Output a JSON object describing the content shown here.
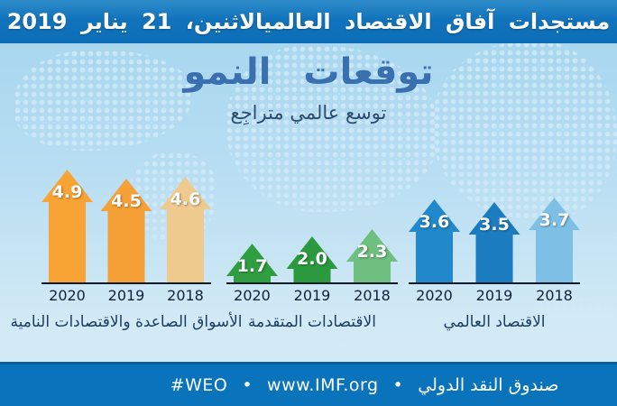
{
  "header": {
    "title": "مستجدات آفاق الاقتصاد العالميالاثنين، 21 يناير 2019"
  },
  "hero": {
    "title": "توقعات  النمو",
    "subtitle": "توسع عالمي متراجِع"
  },
  "chart_data": {
    "type": "bar",
    "bar_style": "up-arrow",
    "title": "توقعات النمو",
    "subtitle": "توسع عالمي متراجِع",
    "categories": [
      "2020",
      "2019",
      "2018"
    ],
    "value_axis": "hidden",
    "value_labels": "on-bar",
    "direction": "rtl",
    "groups": [
      {
        "name": "الأسواق الصاعدة والاقتصادات النامية",
        "values": [
          4.9,
          4.5,
          4.6
        ],
        "labels": [
          "4.9",
          "4.5",
          "4.6"
        ],
        "colors": [
          "#f8a434",
          "#f5a138",
          "#eeca8f"
        ]
      },
      {
        "name": "الاقتصادات المتقدمة",
        "values": [
          1.7,
          2.0,
          2.3
        ],
        "labels": [
          "1.7",
          "2.0",
          "2.3"
        ],
        "colors": [
          "#2f9e41",
          "#2b9a3e",
          "#6fc080"
        ]
      },
      {
        "name": "الاقتصاد العالمي",
        "values": [
          3.6,
          3.5,
          3.7
        ],
        "labels": [
          "3.6",
          "3.5",
          "3.7"
        ],
        "colors": [
          "#2189cb",
          "#1b7dc0",
          "#7ec0e5"
        ]
      }
    ]
  },
  "footer": {
    "hashtag": "#WEO",
    "separator": "•",
    "url": "www.IMF.org",
    "org": "صندوق النقد الدولي"
  },
  "colors": {
    "header_bar": "#1173bb",
    "footer_bar": "#0973bb",
    "background_top": "#a3d5ee",
    "background_bottom": "#d8edf9",
    "title_text": "#3a70af",
    "baseline": "#121a28"
  }
}
